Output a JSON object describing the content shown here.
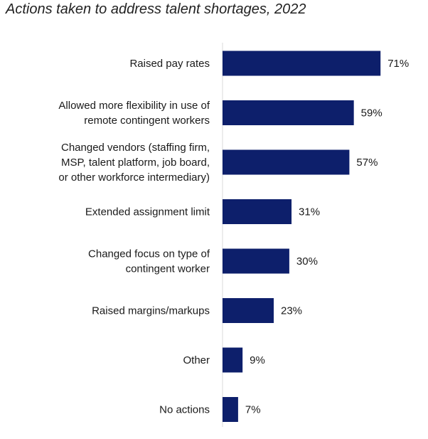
{
  "chart_data": {
    "type": "bar",
    "orientation": "horizontal",
    "title": "Actions taken to address talent shortages, 2022",
    "categories": [
      [
        "Raised pay rates"
      ],
      [
        "Allowed more flexibility in use of",
        "remote contingent workers"
      ],
      [
        "Changed vendors (staffing firm,",
        "MSP, talent platform, job board,",
        "or other workforce intermediary)"
      ],
      [
        "Extended assignment limit"
      ],
      [
        "Changed focus on type of",
        "contingent worker"
      ],
      [
        "Raised margins/markups"
      ],
      [
        "Other"
      ],
      [
        "No actions"
      ]
    ],
    "values": [
      71,
      59,
      57,
      31,
      30,
      23,
      9,
      7
    ],
    "value_labels": [
      "71%",
      "59%",
      "57%",
      "31%",
      "30%",
      "23%",
      "9%",
      "7%"
    ],
    "unit": "%",
    "xlim": [
      0,
      100
    ],
    "bar_color": "#0d1f6b",
    "grid": false,
    "legend": "none"
  }
}
